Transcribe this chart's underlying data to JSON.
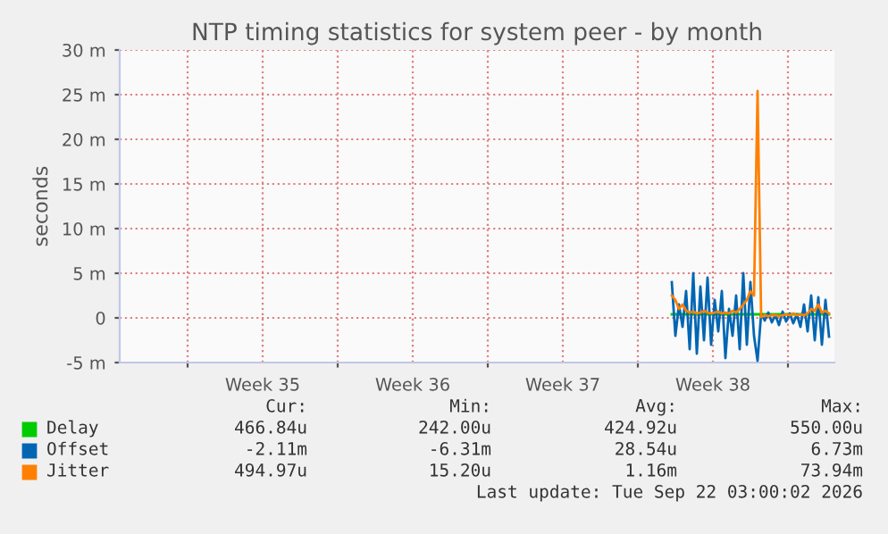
{
  "chart_data": {
    "type": "line",
    "title": "NTP timing statistics for system peer - by month",
    "ylabel": "seconds",
    "x": [
      "2026-09-15T14:00",
      "2026-09-15T18:00",
      "2026-09-15T22:00",
      "2026-09-16T02:00",
      "2026-09-16T06:00",
      "2026-09-16T10:00",
      "2026-09-16T14:00",
      "2026-09-16T18:00",
      "2026-09-16T22:00",
      "2026-09-17T02:00",
      "2026-09-17T06:00",
      "2026-09-17T10:00",
      "2026-09-17T14:00",
      "2026-09-17T18:00",
      "2026-09-17T22:00",
      "2026-09-18T02:00",
      "2026-09-18T06:00",
      "2026-09-18T10:00",
      "2026-09-18T14:00",
      "2026-09-18T18:00",
      "2026-09-18T22:00",
      "2026-09-19T02:00",
      "2026-09-19T06:00",
      "2026-09-19T10:00",
      "2026-09-19T14:00",
      "2026-09-19T18:00",
      "2026-09-19T22:00",
      "2026-09-20T02:00",
      "2026-09-20T06:00",
      "2026-09-20T10:00",
      "2026-09-20T14:00",
      "2026-09-20T18:00",
      "2026-09-20T22:00",
      "2026-09-21T02:00",
      "2026-09-21T06:00",
      "2026-09-21T10:00",
      "2026-09-21T14:00",
      "2026-09-21T18:00",
      "2026-09-21T22:00",
      "2026-09-22T02:00",
      "2026-09-22T06:00",
      "2026-09-22T10:00",
      "2026-09-22T14:00",
      "2026-09-22T18:00",
      "2026-09-22T22:00"
    ],
    "series": [
      {
        "name": "Delay",
        "color": "#00cc00",
        "values": [
          0.4,
          0.4,
          0.4,
          0.4,
          0.4,
          0.4,
          0.4,
          0.4,
          0.4,
          0.4,
          0.4,
          0.4,
          0.4,
          0.4,
          0.4,
          0.4,
          0.4,
          0.4,
          0.4,
          0.4,
          0.4,
          0.4,
          0.4,
          0.4,
          0.4,
          0.4,
          0.4,
          0.4,
          0.4,
          0.4,
          0.4,
          0.4,
          0.4,
          0.4,
          0.4,
          0.4,
          0.4,
          0.4,
          0.4,
          0.4,
          0.4,
          0.4,
          0.4,
          0.4,
          0.4
        ]
      },
      {
        "name": "Offset",
        "color": "#0066b3",
        "values": [
          4.0,
          -2.0,
          1.5,
          -1.0,
          3.0,
          -3.5,
          5.0,
          -4.0,
          3.5,
          -2.5,
          4.5,
          -3.0,
          2.0,
          -1.5,
          3.0,
          -4.5,
          1.0,
          -2.0,
          2.5,
          -3.5,
          5.0,
          -3.0,
          4.0,
          -2.0,
          -4.8,
          0.5,
          -0.3,
          0.6,
          -0.5,
          0.3,
          -0.8,
          0.7,
          -0.4,
          0.5,
          -0.6,
          0.4,
          -1.0,
          1.5,
          -1.5,
          2.5,
          -2.5,
          2.3,
          -3.0,
          2.0,
          -2.1
        ]
      },
      {
        "name": "Jitter",
        "color": "#ff8000",
        "values": [
          2.5,
          2.0,
          1.0,
          1.5,
          0.8,
          0.6,
          0.7,
          0.5,
          0.6,
          0.8,
          0.6,
          0.5,
          0.6,
          0.7,
          0.5,
          0.6,
          0.5,
          0.8,
          0.6,
          1.0,
          1.5,
          2.0,
          3.0,
          2.5,
          25.4,
          0.1,
          0.3,
          0.2,
          0.3,
          0.3,
          0.2,
          0.3,
          0.4,
          0.3,
          0.5,
          0.3,
          0.4,
          0.3,
          0.5,
          1.0,
          0.8,
          1.5,
          0.6,
          0.8,
          0.5
        ]
      }
    ],
    "xlim": [
      "2026-08-20T20:00",
      "2026-09-23T04:00"
    ],
    "xticks": [
      {
        "value": "2026-08-24T00:00",
        "label": null
      },
      {
        "value": "2026-08-27T12:00",
        "label": "Week 35"
      },
      {
        "value": "2026-08-31T00:00",
        "label": null
      },
      {
        "value": "2026-09-03T12:00",
        "label": "Week 36"
      },
      {
        "value": "2026-09-07T00:00",
        "label": null
      },
      {
        "value": "2026-09-10T12:00",
        "label": "Week 37"
      },
      {
        "value": "2026-09-14T00:00",
        "label": null
      },
      {
        "value": "2026-09-17T12:00",
        "label": "Week 38"
      },
      {
        "value": "2026-09-21T00:00",
        "label": null
      }
    ],
    "ylim": [
      -5,
      30
    ],
    "yticks": [
      {
        "value": -5,
        "label": "-5 m"
      },
      {
        "value": 0,
        "label": "0"
      },
      {
        "value": 5,
        "label": "5 m"
      },
      {
        "value": 10,
        "label": "10 m"
      },
      {
        "value": 15,
        "label": "15 m"
      },
      {
        "value": 20,
        "label": "20 m"
      },
      {
        "value": 25,
        "label": "25 m"
      },
      {
        "value": 30,
        "label": "30 m"
      }
    ],
    "grid": true,
    "legend": "bottom left",
    "annotations": [
      "Cur:",
      "Min:",
      "Avg:",
      "Max:",
      "466.84u",
      "242.00u",
      "424.92u",
      "550.00u",
      "-2.11m",
      "-6.31m",
      "28.54u",
      "6.73m",
      "494.97u",
      "15.20u",
      "1.16m",
      "73.94m",
      "Last update: Tue Sep 22 03:00:02 2026"
    ]
  }
}
